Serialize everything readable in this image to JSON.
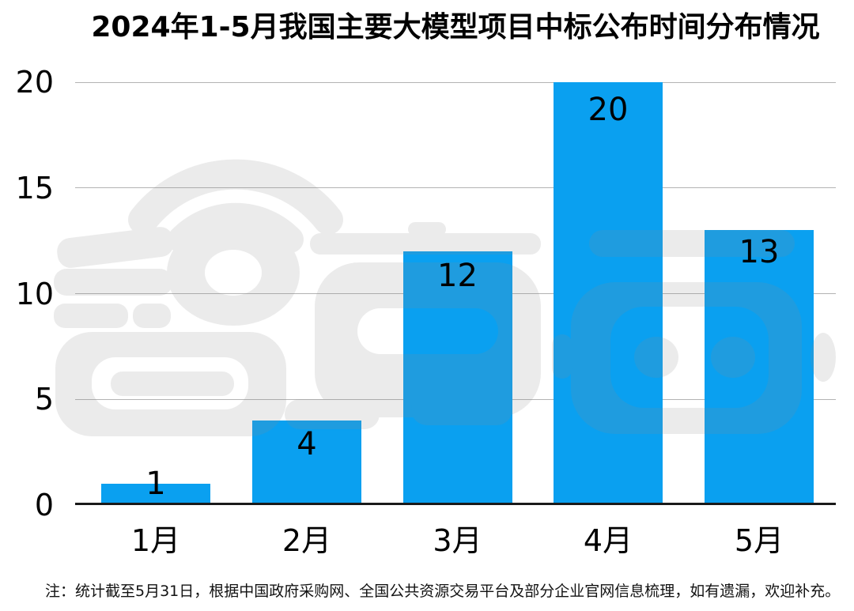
{
  "footnote": "注：统计截至5月31日，根据中国政府采购网、全国公共资源交易平台及部分企业官网信息梳理，如有遗漏，欢迎补充。",
  "watermark": {
    "label": "智东西",
    "color": "#8A8A8A",
    "opacity": 0.16
  },
  "chart_data": {
    "type": "bar",
    "title": "2024年1-5月我国主要大模型项目中标公布时间分布情况",
    "categories": [
      "1月",
      "2月",
      "3月",
      "4月",
      "5月"
    ],
    "values": [
      1,
      4,
      12,
      20,
      13
    ],
    "xlabel": "",
    "ylabel": "",
    "ylim": [
      0,
      20
    ],
    "yticks": [
      0,
      5,
      10,
      15,
      20
    ],
    "grid": "horizontal-light",
    "legend": "none",
    "bar_color": "#0AA0F0",
    "data_labels": true,
    "data_label_color": "#000000",
    "axis_label_color": "#000000"
  }
}
